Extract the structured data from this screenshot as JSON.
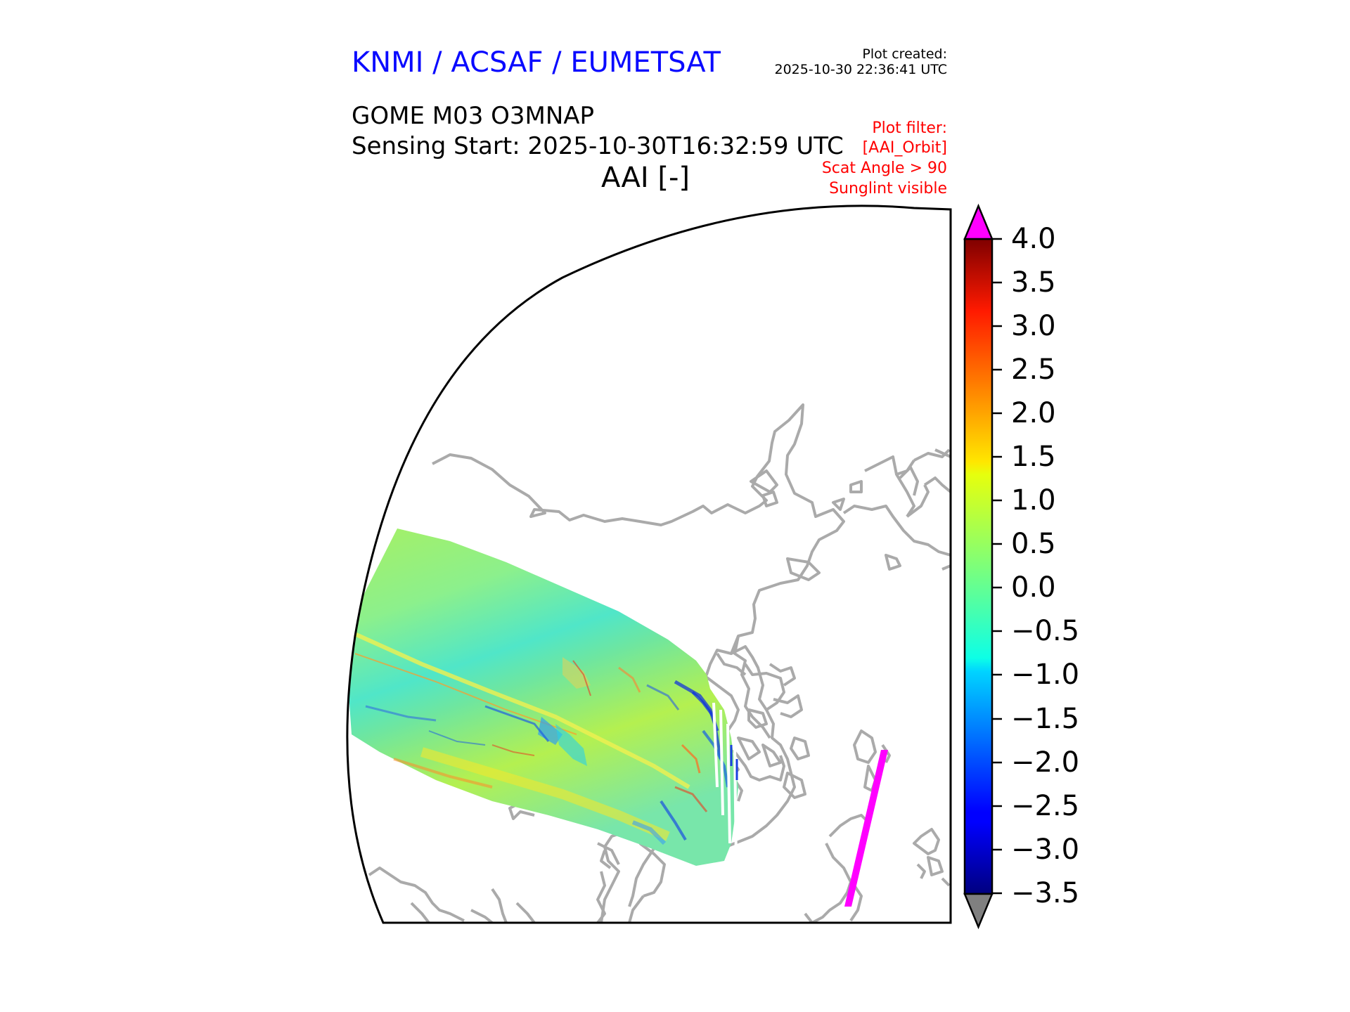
{
  "header": {
    "organization": "KNMI / ACSAF / EUMETSAT",
    "plot_created_label": "Plot created:",
    "plot_created_time": "2025-10-30 22:36:41 UTC"
  },
  "title": {
    "product": "GOME M03 O3MNAP",
    "sensing_start": "Sensing Start: 2025-10-30T16:32:59 UTC",
    "variable": "AAI [-]"
  },
  "plot_filter": {
    "label": "Plot filter:",
    "orbit": "[AAI_Orbit]",
    "scat_angle": "Scat Angle > 90",
    "sunglint": "Sunglint visible"
  },
  "colorbar": {
    "colormap": "jet",
    "min": -3.5,
    "max": 4.0,
    "extend": "both",
    "over_color": "#ff00ff",
    "under_color": "#808080",
    "tick_labels": [
      "4.0",
      "3.5",
      "3.0",
      "2.5",
      "2.0",
      "1.5",
      "1.0",
      "0.5",
      "0.0",
      "−0.5",
      "−1.0",
      "−1.5",
      "−2.0",
      "−2.5",
      "−3.0",
      "−3.5"
    ]
  },
  "map": {
    "projection": "polar stereographic sector",
    "coastline_color": "#aaaaaa",
    "swath_main_value_range": [
      -3.0,
      2.5
    ],
    "swath_typical_value": 0.3,
    "overflow_swath_color": "#ff00ff"
  }
}
